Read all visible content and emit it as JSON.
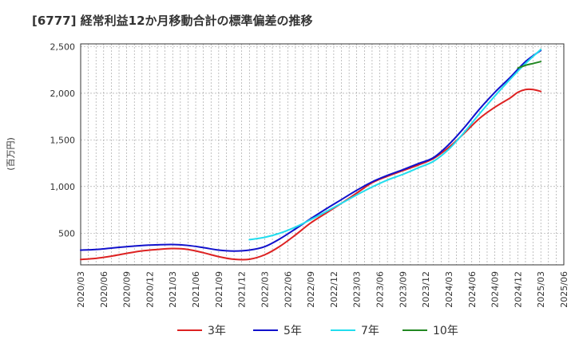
{
  "chart_data": {
    "type": "line",
    "title": "[6777]  経常利益12か月移動合計の標準偏差の推移",
    "ylabel": "(百万円)",
    "xlabel": "",
    "ylim": [
      160,
      2530
    ],
    "yticks": [
      500,
      1000,
      1500,
      2000,
      2500
    ],
    "ytick_labels": [
      "500",
      "1,000",
      "1,500",
      "2,000",
      "2,500"
    ],
    "x_tick_labels": [
      "2020/03",
      "2020/06",
      "2020/09",
      "2020/12",
      "2021/03",
      "2021/06",
      "2021/09",
      "2021/12",
      "2022/03",
      "2022/06",
      "2022/09",
      "2022/12",
      "2023/03",
      "2023/06",
      "2023/09",
      "2023/12",
      "2024/03",
      "2024/06",
      "2024/09",
      "2024/12",
      "2025/03",
      "2025/06"
    ],
    "grid": true,
    "legend_position": "bottom",
    "series": [
      {
        "name": "3年",
        "color": "#dd2222",
        "x": [
          "2020/03",
          "2020/05",
          "2020/07",
          "2020/09",
          "2020/11",
          "2021/01",
          "2021/03",
          "2021/05",
          "2021/07",
          "2021/09",
          "2021/11",
          "2022/01",
          "2022/03",
          "2022/05",
          "2022/07",
          "2022/09",
          "2022/11",
          "2023/01",
          "2023/03",
          "2023/05",
          "2023/07",
          "2023/09",
          "2023/11",
          "2024/01",
          "2024/03",
          "2024/05",
          "2024/07",
          "2024/09",
          "2024/11",
          "2024/12",
          "2025/01",
          "2025/02",
          "2025/03"
        ],
        "values": [
          218,
          230,
          253,
          283,
          310,
          325,
          335,
          325,
          290,
          248,
          220,
          220,
          268,
          360,
          480,
          610,
          715,
          820,
          930,
          1040,
          1110,
          1170,
          1230,
          1300,
          1420,
          1570,
          1730,
          1850,
          1950,
          2010,
          2040,
          2040,
          2020
        ]
      },
      {
        "name": "5年",
        "color": "#1111cc",
        "x": [
          "2020/03",
          "2020/05",
          "2020/07",
          "2020/09",
          "2020/11",
          "2021/01",
          "2021/03",
          "2021/05",
          "2021/07",
          "2021/09",
          "2021/11",
          "2022/01",
          "2022/03",
          "2022/05",
          "2022/07",
          "2022/09",
          "2022/11",
          "2023/01",
          "2023/03",
          "2023/05",
          "2023/07",
          "2023/09",
          "2023/11",
          "2024/01",
          "2024/03",
          "2024/05",
          "2024/07",
          "2024/09",
          "2024/11",
          "2025/01",
          "2025/03"
        ],
        "values": [
          318,
          325,
          340,
          355,
          368,
          375,
          378,
          368,
          345,
          318,
          308,
          318,
          355,
          440,
          545,
          655,
          760,
          860,
          960,
          1050,
          1120,
          1180,
          1245,
          1310,
          1450,
          1630,
          1830,
          2010,
          2170,
          2340,
          2460
        ]
      },
      {
        "name": "7年",
        "color": "#22ddee",
        "x": [
          "2022/01",
          "2022/03",
          "2022/05",
          "2022/07",
          "2022/09",
          "2022/11",
          "2023/01",
          "2023/03",
          "2023/05",
          "2023/07",
          "2023/09",
          "2023/11",
          "2024/01",
          "2024/03",
          "2024/05",
          "2024/07",
          "2024/09",
          "2024/11",
          "2025/01",
          "2025/03"
        ],
        "values": [
          430,
          455,
          500,
          565,
          645,
          730,
          820,
          910,
          995,
          1070,
          1130,
          1200,
          1270,
          1400,
          1580,
          1780,
          1970,
          2150,
          2320,
          2470
        ]
      },
      {
        "name": "10年",
        "color": "#228822",
        "x": [
          "2024/12",
          "2025/01",
          "2025/02",
          "2025/03"
        ],
        "values": [
          2270,
          2300,
          2320,
          2340
        ]
      }
    ]
  }
}
